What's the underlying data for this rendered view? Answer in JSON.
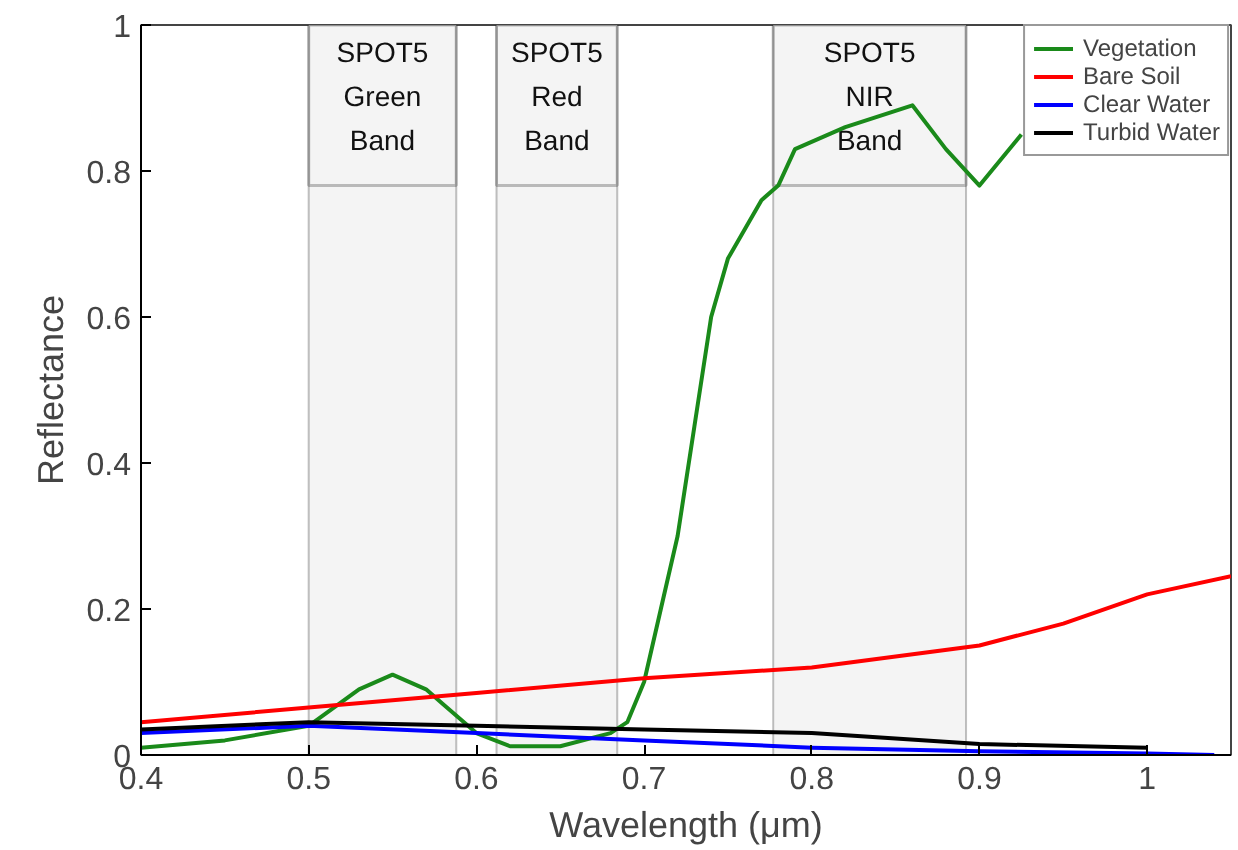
{
  "chart_data": {
    "type": "line",
    "xlabel": "Wavelength (μm)",
    "ylabel": "Reflectance",
    "xlim": [
      0.4,
      1.05
    ],
    "ylim": [
      0,
      1
    ],
    "xticks": [
      0.4,
      0.5,
      0.6,
      0.7,
      0.8,
      0.9,
      1
    ],
    "yticks": [
      0,
      0.2,
      0.4,
      0.6,
      0.8,
      1
    ],
    "grid": false,
    "legend": "top right",
    "line_style": "solid",
    "marker": "none",
    "series": [
      {
        "name": "Vegetation",
        "color": "#1a8a1a",
        "x": [
          0.4,
          0.45,
          0.5,
          0.53,
          0.55,
          0.57,
          0.58,
          0.6,
          0.62,
          0.65,
          0.68,
          0.69,
          0.7,
          0.71,
          0.72,
          0.73,
          0.74,
          0.75,
          0.77,
          0.78,
          0.79,
          0.82,
          0.86,
          0.88,
          0.9,
          0.925
        ],
        "values": [
          0.01,
          0.02,
          0.04,
          0.09,
          0.11,
          0.09,
          0.07,
          0.03,
          0.012,
          0.012,
          0.03,
          0.045,
          0.1,
          0.2,
          0.3,
          0.45,
          0.6,
          0.68,
          0.76,
          0.78,
          0.83,
          0.86,
          0.89,
          0.83,
          0.78,
          0.85
        ]
      },
      {
        "name": "Bare Soil",
        "color": "#ff0000",
        "x": [
          0.4,
          0.5,
          0.6,
          0.7,
          0.8,
          0.9,
          0.95,
          1.0,
          1.05
        ],
        "values": [
          0.045,
          0.065,
          0.085,
          0.105,
          0.12,
          0.15,
          0.18,
          0.22,
          0.245
        ]
      },
      {
        "name": "Clear Water",
        "color": "#0000ff",
        "x": [
          0.4,
          0.5,
          0.6,
          0.7,
          0.8,
          0.9,
          1.0,
          1.04
        ],
        "values": [
          0.03,
          0.04,
          0.03,
          0.02,
          0.01,
          0.005,
          0.002,
          0.0
        ]
      },
      {
        "name": "Turbid Water",
        "color": "#000000",
        "x": [
          0.4,
          0.5,
          0.6,
          0.7,
          0.8,
          0.9,
          1.0
        ],
        "values": [
          0.035,
          0.045,
          0.04,
          0.035,
          0.03,
          0.015,
          0.01
        ]
      }
    ],
    "bands": [
      {
        "axis": "x",
        "from": 0.5,
        "to": 0.588,
        "label": "SPOT5\nGreen\nBand",
        "color": "#f4f4f4"
      },
      {
        "axis": "x",
        "from": 0.612,
        "to": 0.684,
        "label": "SPOT5\nRed\nBand",
        "color": "#f4f4f4"
      },
      {
        "axis": "x",
        "from": 0.777,
        "to": 0.892,
        "label": "SPOT5\nNIR\nBand",
        "color": "#f4f4f4"
      }
    ]
  }
}
